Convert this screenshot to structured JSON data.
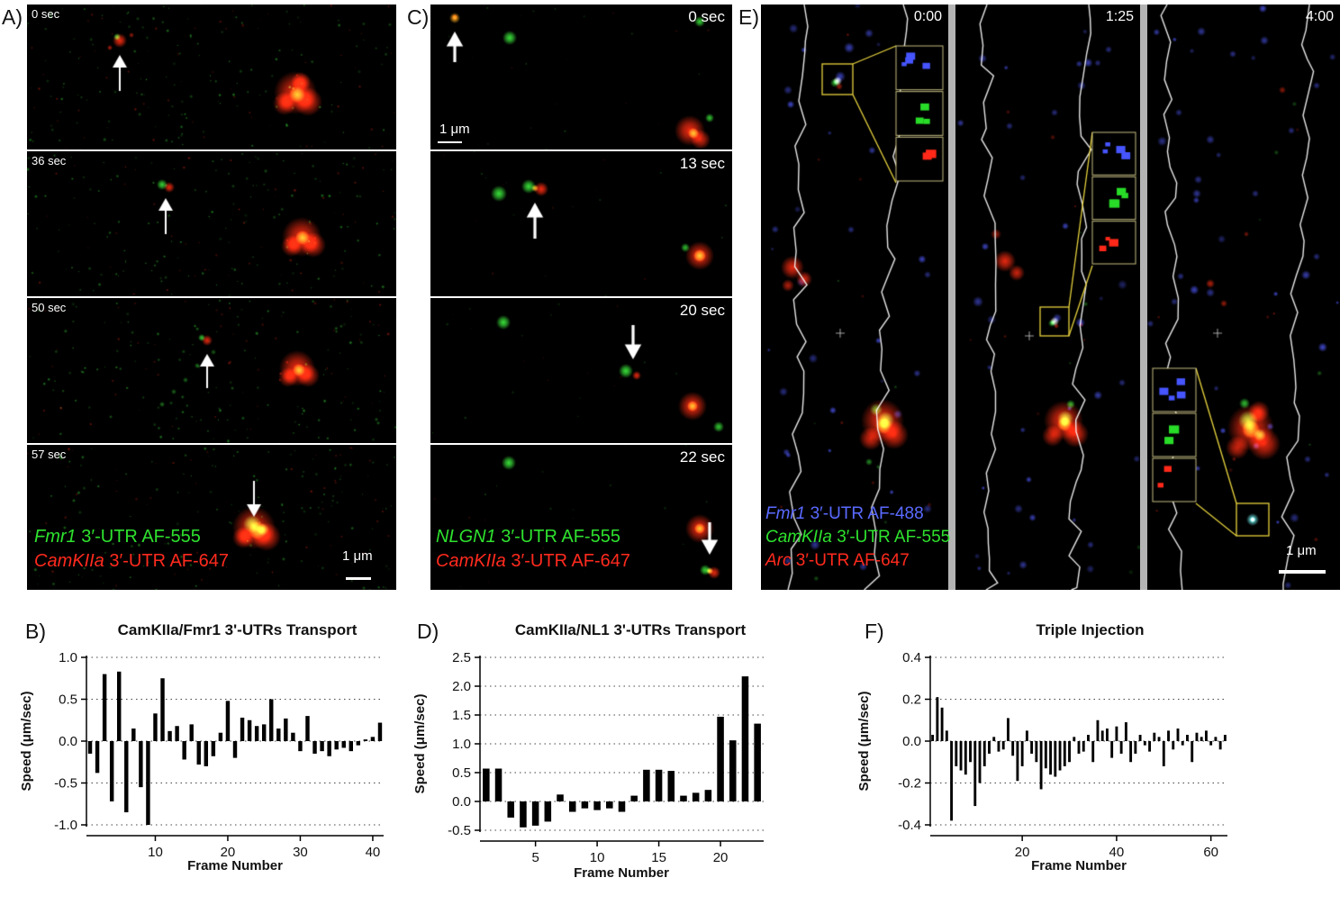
{
  "panels": {
    "A": {
      "label": "A)",
      "frames": [
        {
          "time": "0 sec"
        },
        {
          "time": "36 sec"
        },
        {
          "time": "50 sec"
        },
        {
          "time": "57 sec"
        }
      ],
      "legend": [
        {
          "gene": "Fmr1",
          "text": " 3′-UTR AF-555",
          "color": "#2ee22e"
        },
        {
          "gene": "CamKIIa",
          "text": " 3′-UTR AF-647",
          "color": "#ff2a1e"
        }
      ],
      "scale_bar": "1 μm"
    },
    "C": {
      "label": "C)",
      "frames": [
        {
          "time": "0 sec"
        },
        {
          "time": "13 sec"
        },
        {
          "time": "20 sec"
        },
        {
          "time": "22 sec"
        }
      ],
      "legend": [
        {
          "gene": "NLGN1",
          "text": " 3′-UTR AF-555",
          "color": "#2ee22e"
        },
        {
          "gene": "CamKIIa",
          "text": " 3′-UTR AF-647",
          "color": "#ff2a1e"
        }
      ],
      "scale_bar": "1 μm"
    },
    "E": {
      "label": "E)",
      "frames": [
        {
          "time": "0:00"
        },
        {
          "time": "1:25"
        },
        {
          "time": "4:00"
        }
      ],
      "legend": [
        {
          "gene": "Fmr1",
          "text": " 3′-UTR AF-488",
          "color": "#5a6aff"
        },
        {
          "gene": "CamKIIa",
          "text": " 3′-UTR AF-555",
          "color": "#2ee22e"
        },
        {
          "gene": "Arc",
          "text": " 3′-UTR AF-647",
          "color": "#ff2a1e"
        }
      ],
      "scale_bar": "1 μm"
    },
    "B": {
      "label": "B)"
    },
    "D": {
      "label": "D)"
    },
    "F": {
      "label": "F)"
    }
  },
  "chart_data": [
    {
      "panel": "B",
      "type": "bar",
      "title": "CamKIIa/Fmr1 3'-UTRs Transport",
      "xlabel": "Frame Number",
      "ylabel": "Speed (μm/sec)",
      "ylim": [
        -1.0,
        1.0
      ],
      "yticks": [
        1.0,
        0.5,
        0.0,
        -0.5,
        -1.0
      ],
      "xticks": [
        10,
        20,
        30,
        40
      ],
      "grid": "dotted-horizontal",
      "values": [
        -0.15,
        -0.38,
        0.8,
        -0.72,
        0.83,
        -0.85,
        0.15,
        -0.55,
        -1.0,
        0.33,
        0.75,
        0.12,
        0.18,
        -0.22,
        0.2,
        -0.28,
        -0.3,
        -0.18,
        0.1,
        0.48,
        -0.2,
        0.28,
        0.25,
        0.18,
        0.2,
        0.5,
        0.15,
        0.27,
        0.1,
        -0.12,
        0.3,
        -0.15,
        -0.12,
        -0.18,
        -0.1,
        -0.08,
        -0.12,
        -0.05,
        0.02,
        0.05,
        0.22
      ]
    },
    {
      "panel": "D",
      "type": "bar",
      "title": "CamKIIa/NL1 3'-UTRs Transport",
      "xlabel": "Frame Number",
      "ylabel": "Speed (μm/sec)",
      "ylim": [
        -0.5,
        2.5
      ],
      "yticks": [
        2.5,
        2.0,
        1.5,
        1.0,
        0.5,
        0.0,
        -0.5
      ],
      "xticks": [
        5,
        10,
        15,
        20
      ],
      "grid": "dotted-horizontal",
      "values": [
        0.57,
        0.57,
        -0.28,
        -0.45,
        -0.42,
        -0.35,
        0.12,
        -0.18,
        -0.12,
        -0.15,
        -0.12,
        -0.18,
        0.1,
        0.55,
        0.55,
        0.53,
        0.1,
        0.15,
        0.2,
        1.47,
        1.06,
        2.17,
        1.35
      ]
    },
    {
      "panel": "F",
      "type": "bar",
      "title": "Triple Injection",
      "xlabel": "Frame Number",
      "ylabel": "Speed (μm/sec)",
      "ylim": [
        -0.4,
        0.4
      ],
      "yticks": [
        0.4,
        0.2,
        0.0,
        -0.2,
        -0.4
      ],
      "xticks": [
        20,
        40,
        60
      ],
      "grid": "dotted-horizontal",
      "values": [
        0.03,
        0.21,
        0.16,
        0.05,
        -0.38,
        -0.12,
        -0.14,
        -0.16,
        -0.1,
        -0.31,
        -0.2,
        -0.12,
        -0.06,
        0.02,
        -0.05,
        -0.04,
        0.11,
        -0.07,
        -0.19,
        -0.12,
        0.05,
        -0.06,
        -0.1,
        -0.23,
        -0.13,
        -0.16,
        -0.17,
        -0.14,
        -0.12,
        -0.1,
        0.02,
        -0.06,
        -0.05,
        0.03,
        -0.1,
        0.1,
        0.05,
        0.06,
        -0.08,
        0.07,
        -0.06,
        0.09,
        -0.1,
        -0.06,
        0.03,
        -0.02,
        -0.05,
        0.04,
        0.02,
        -0.12,
        0.05,
        -0.04,
        0.06,
        -0.02,
        0.03,
        -0.1,
        0.04,
        0.02,
        0.05,
        -0.02,
        0.02,
        -0.04,
        0.03
      ]
    }
  ]
}
